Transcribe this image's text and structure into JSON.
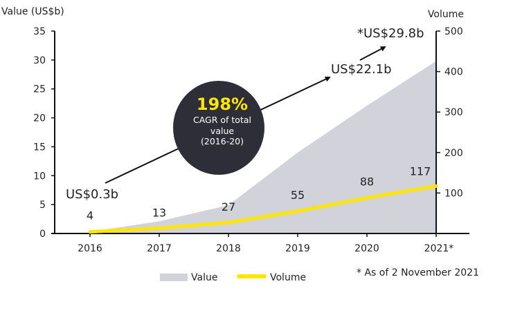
{
  "chart_data": {
    "type": "area",
    "categories": [
      "2016",
      "2017",
      "2018",
      "2019",
      "2020",
      "2021*"
    ],
    "series": [
      {
        "name": "Value",
        "type": "area",
        "axis": "left",
        "values": [
          0.3,
          2.1,
          4.9,
          14.0,
          22.1,
          29.8
        ],
        "color": "#d2d2da"
      },
      {
        "name": "Volume",
        "type": "line",
        "axis": "right",
        "values": [
          4,
          13,
          27,
          55,
          88,
          117
        ],
        "color": "#ffe600"
      }
    ],
    "ylabel_left": "Value (US$b)",
    "ylabel_right": "Volume",
    "ylim_left": [
      0,
      35
    ],
    "yticks_left": [
      "0",
      "5",
      "10",
      "15",
      "20",
      "25",
      "30",
      "35"
    ],
    "ylim_right": [
      0,
      500
    ],
    "yticks_right": [
      "100",
      "200",
      "300",
      "400",
      "500"
    ],
    "volume_labels": [
      "4",
      "13",
      "27",
      "55",
      "88",
      "117"
    ],
    "annotations": {
      "start_value": "US$0.3b",
      "value_2020": "US$22.1b",
      "value_2021": "*US$29.8b",
      "cagr_value": "198%",
      "cagr_line1": "CAGR of total",
      "cagr_line2": "value",
      "cagr_line3": "(2016-20)",
      "cagr_circle_color": "#2e2e38",
      "cagr_text_color": "#ffe600"
    },
    "legend": {
      "position": "bottom",
      "items": [
        "Value",
        "Volume"
      ]
    },
    "footnote": "* As of 2 November 2021",
    "grid": false
  }
}
